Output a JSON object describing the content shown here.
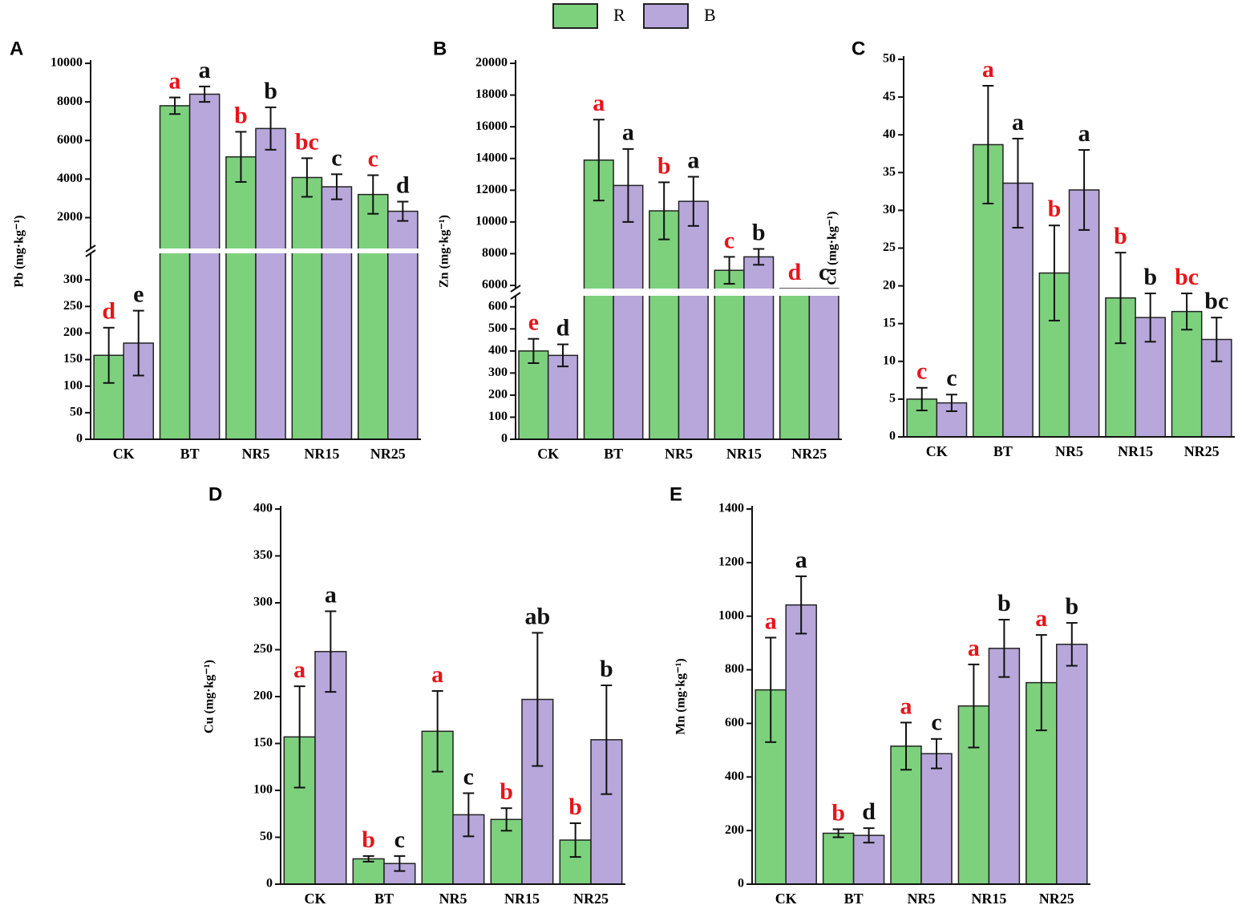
{
  "legend": [
    {
      "name": "R",
      "color": "#7dd17d"
    },
    {
      "name": "B",
      "color": "#b7a7da"
    }
  ],
  "chart_data": [
    {
      "type": "bar",
      "panel": "A",
      "ylabel": "Pb (mg·kg⁻¹)",
      "categories": [
        "CK",
        "BT",
        "NR5",
        "NR15",
        "NR25"
      ],
      "ylim_lower": [
        0,
        350
      ],
      "yticks_lower": [
        0,
        50,
        100,
        150,
        200,
        250,
        300
      ],
      "ylim_upper": [
        400,
        10000
      ],
      "yticks_upper": [
        2000,
        4000,
        6000,
        8000,
        10000
      ],
      "series": [
        {
          "name": "R",
          "color": "#7dd17d",
          "letter_color": "#e8141b",
          "values": [
            158,
            7800,
            5150,
            4080,
            3200
          ],
          "errors": [
            52,
            430,
            1300,
            1000,
            1000
          ],
          "letters": [
            "d",
            "a",
            "b",
            "bc",
            "c"
          ]
        },
        {
          "name": "B",
          "color": "#b7a7da",
          "letter_color": "#111111",
          "values": [
            181,
            8400,
            6620,
            3600,
            2330
          ],
          "errors": [
            61,
            400,
            1100,
            650,
            500
          ],
          "letters": [
            "e",
            "a",
            "b",
            "c",
            "d"
          ]
        }
      ]
    },
    {
      "type": "bar",
      "panel": "B",
      "ylabel": "Zn (mg·kg⁻¹)",
      "categories": [
        "CK",
        "BT",
        "NR5",
        "NR15",
        "NR25"
      ],
      "ylim_lower": [
        0,
        650
      ],
      "yticks_lower": [
        0,
        100,
        200,
        300,
        400,
        500,
        600
      ],
      "ylim_upper": [
        5800,
        20000
      ],
      "yticks_upper": [
        6000,
        8000,
        10000,
        12000,
        14000,
        16000,
        18000,
        20000
      ],
      "series": [
        {
          "name": "R",
          "color": "#7dd17d",
          "letter_color": "#e8141b",
          "values": [
            400,
            13900,
            10700,
            6950,
            5800
          ],
          "errors": [
            55,
            2550,
            1800,
            850,
            null
          ],
          "letters": [
            "e",
            "a",
            "b",
            "c",
            "d"
          ]
        },
        {
          "name": "B",
          "color": "#b7a7da",
          "letter_color": "#111111",
          "values": [
            380,
            12300,
            11300,
            7800,
            5800
          ],
          "errors": [
            50,
            2300,
            1550,
            500,
            null
          ],
          "letters": [
            "d",
            "a",
            "a",
            "b",
            "c"
          ]
        }
      ]
    },
    {
      "type": "bar",
      "panel": "C",
      "ylabel": "Cd (mg·kg⁻¹)",
      "categories": [
        "CK",
        "BT",
        "NR5",
        "NR15",
        "NR25"
      ],
      "ylim": [
        0,
        50
      ],
      "yticks": [
        0,
        5,
        10,
        15,
        20,
        25,
        30,
        35,
        40,
        45,
        50
      ],
      "series": [
        {
          "name": "R",
          "color": "#7dd17d",
          "letter_color": "#e8141b",
          "values": [
            5,
            38.7,
            21.7,
            18.4,
            16.6
          ],
          "errors": [
            1.5,
            7.8,
            6.3,
            6,
            2.4
          ],
          "letters": [
            "c",
            "a",
            "b",
            "b",
            "bc"
          ]
        },
        {
          "name": "B",
          "color": "#b7a7da",
          "letter_color": "#111111",
          "values": [
            4.5,
            33.6,
            32.7,
            15.8,
            12.9
          ],
          "errors": [
            1.1,
            5.9,
            5.3,
            3.2,
            2.9
          ],
          "letters": [
            "c",
            "a",
            "a",
            "b",
            "bc"
          ]
        }
      ]
    },
    {
      "type": "bar",
      "panel": "D",
      "ylabel": "Cu (mg·kg⁻¹)",
      "categories": [
        "CK",
        "BT",
        "NR5",
        "NR15",
        "NR25"
      ],
      "ylim": [
        0,
        400
      ],
      "yticks": [
        0,
        50,
        100,
        150,
        200,
        250,
        300,
        350,
        400
      ],
      "series": [
        {
          "name": "R",
          "color": "#7dd17d",
          "letter_color": "#e8141b",
          "values": [
            157,
            27,
            163,
            69,
            47
          ],
          "errors": [
            54,
            3,
            43,
            12,
            18
          ],
          "letters": [
            "a",
            "b",
            "a",
            "b",
            "b"
          ]
        },
        {
          "name": "B",
          "color": "#b7a7da",
          "letter_color": "#111111",
          "values": [
            248,
            22,
            74,
            197,
            154
          ],
          "errors": [
            43,
            8,
            23,
            71,
            58
          ],
          "letters": [
            "a",
            "c",
            "c",
            "ab",
            "b"
          ]
        }
      ]
    },
    {
      "type": "bar",
      "panel": "E",
      "ylabel": "Mn (mg·kg⁻¹)",
      "categories": [
        "CK",
        "BT",
        "NR5",
        "NR15",
        "NR25"
      ],
      "ylim": [
        0,
        1400
      ],
      "yticks": [
        0,
        200,
        400,
        600,
        800,
        1000,
        1200,
        1400
      ],
      "series": [
        {
          "name": "R",
          "color": "#7dd17d",
          "letter_color": "#e8141b",
          "values": [
            725,
            190,
            515,
            665,
            752
          ],
          "errors": [
            195,
            15,
            88,
            155,
            178
          ],
          "letters": [
            "a",
            "b",
            "a",
            "a",
            "a"
          ]
        },
        {
          "name": "B",
          "color": "#b7a7da",
          "letter_color": "#111111",
          "values": [
            1042,
            182,
            487,
            880,
            895
          ],
          "errors": [
            107,
            27,
            55,
            107,
            80
          ],
          "letters": [
            "a",
            "d",
            "c",
            "b",
            "b"
          ]
        }
      ]
    }
  ]
}
